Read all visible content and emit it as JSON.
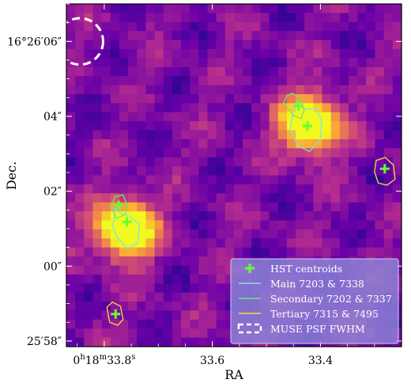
{
  "chart_data": {
    "type": "heatmap",
    "title": "",
    "xlabel": "RA",
    "ylabel": "Dec.",
    "x_tick_labels": [
      {
        "main": "0",
        "sup1": "h",
        "mid": "18",
        "sup2": "m",
        "tail": "33.8",
        "sup3": "s"
      },
      {
        "main": "33.6",
        "sup1": "",
        "mid": "",
        "sup2": "",
        "tail": "",
        "sup3": ""
      },
      {
        "main": "33.4",
        "sup1": "",
        "mid": "",
        "sup2": "",
        "tail": "",
        "sup3": ""
      }
    ],
    "y_tick_labels": [
      {
        "text": "16°26′06″"
      },
      {
        "text": "04″"
      },
      {
        "text": "02″"
      },
      {
        "text": "00″"
      },
      {
        "text": "25′58″"
      }
    ],
    "x_ticks_ra_s": [
      33.8,
      33.6,
      33.4
    ],
    "y_ticks_dec_arcsec": [
      6,
      4,
      2,
      0,
      -2
    ],
    "xlim_ra_s": [
      33.87,
      33.25
    ],
    "ylim_dec_arcsec": [
      -2.15,
      7.0
    ],
    "colormap": "plasma",
    "legend_position": "lower-right",
    "sources": [
      {
        "ra_s": 33.76,
        "dec_arcsec": 1.0,
        "sigma_arcsec": 0.55,
        "peak": 1.0
      },
      {
        "ra_s": 33.42,
        "dec_arcsec": 3.8,
        "sigma_arcsec": 0.55,
        "peak": 0.95
      }
    ],
    "hst_centroids": [
      {
        "ra_s": 33.773,
        "dec_arcsec": 1.62
      },
      {
        "ra_s": 33.758,
        "dec_arcsec": 1.18
      },
      {
        "ra_s": 33.441,
        "dec_arcsec": 4.28
      },
      {
        "ra_s": 33.424,
        "dec_arcsec": 3.74
      },
      {
        "ra_s": 33.281,
        "dec_arcsec": 2.6
      },
      {
        "ra_s": 33.779,
        "dec_arcsec": -1.28
      }
    ],
    "contours": [
      {
        "group": "main",
        "color": "#7fe3e3",
        "points": [
          [
            33.782,
            1.25
          ],
          [
            33.78,
            1.55
          ],
          [
            33.77,
            1.42
          ],
          [
            33.755,
            1.35
          ],
          [
            33.735,
            1.12
          ],
          [
            33.738,
            0.62
          ],
          [
            33.758,
            0.47
          ],
          [
            33.776,
            0.77
          ],
          [
            33.784,
            1.05
          ]
        ]
      },
      {
        "group": "main",
        "color": "#7fe3e3",
        "points": [
          [
            33.452,
            4.0
          ],
          [
            33.445,
            4.36
          ],
          [
            33.43,
            4.2
          ],
          [
            33.408,
            4.2
          ],
          [
            33.398,
            3.9
          ],
          [
            33.4,
            3.38
          ],
          [
            33.42,
            3.06
          ],
          [
            33.442,
            3.22
          ],
          [
            33.456,
            3.65
          ]
        ]
      },
      {
        "group": "secondary",
        "color": "#6fe86a",
        "points": [
          [
            33.778,
            1.28
          ],
          [
            33.787,
            1.6
          ],
          [
            33.78,
            1.85
          ],
          [
            33.765,
            1.9
          ],
          [
            33.758,
            1.65
          ],
          [
            33.76,
            1.4
          ],
          [
            33.77,
            1.32
          ]
        ]
      },
      {
        "group": "secondary",
        "color": "#6fe86a",
        "points": [
          [
            33.462,
            4.55
          ],
          [
            33.452,
            4.62
          ],
          [
            33.438,
            4.48
          ],
          [
            33.43,
            4.18
          ],
          [
            33.436,
            3.94
          ],
          [
            33.45,
            4.02
          ],
          [
            33.468,
            4.37
          ]
        ]
      },
      {
        "group": "tertiary",
        "color": "#f2e233",
        "points": [
          [
            33.3,
            2.52
          ],
          [
            33.297,
            2.82
          ],
          [
            33.28,
            2.9
          ],
          [
            33.265,
            2.7
          ],
          [
            33.262,
            2.32
          ],
          [
            33.277,
            2.16
          ],
          [
            33.293,
            2.22
          ]
        ]
      },
      {
        "group": "tertiary",
        "color": "#f2e233",
        "points": [
          [
            33.79,
            -1.5
          ],
          [
            33.795,
            -1.1
          ],
          [
            33.785,
            -0.96
          ],
          [
            33.77,
            -1.07
          ],
          [
            33.765,
            -1.42
          ],
          [
            33.775,
            -1.58
          ]
        ]
      }
    ],
    "psf_ellipse": {
      "ra_s": 33.845,
      "dec_arcsec": 6.0,
      "radius_arcsec": 0.62
    },
    "legend": [
      {
        "label": "HST centroids",
        "kind": "plus",
        "color": "#66ff33"
      },
      {
        "label": "Main 7203 & 7338",
        "kind": "line",
        "color": "#7fe3e3"
      },
      {
        "label": "Secondary 7202 & 7337",
        "kind": "line",
        "color": "#6fe86a"
      },
      {
        "label": "Tertiary 7315 & 7495",
        "kind": "line",
        "color": "#f2e233"
      },
      {
        "label": "MUSE PSF FWHM",
        "kind": "dashed",
        "color": "#ffffff"
      }
    ]
  }
}
